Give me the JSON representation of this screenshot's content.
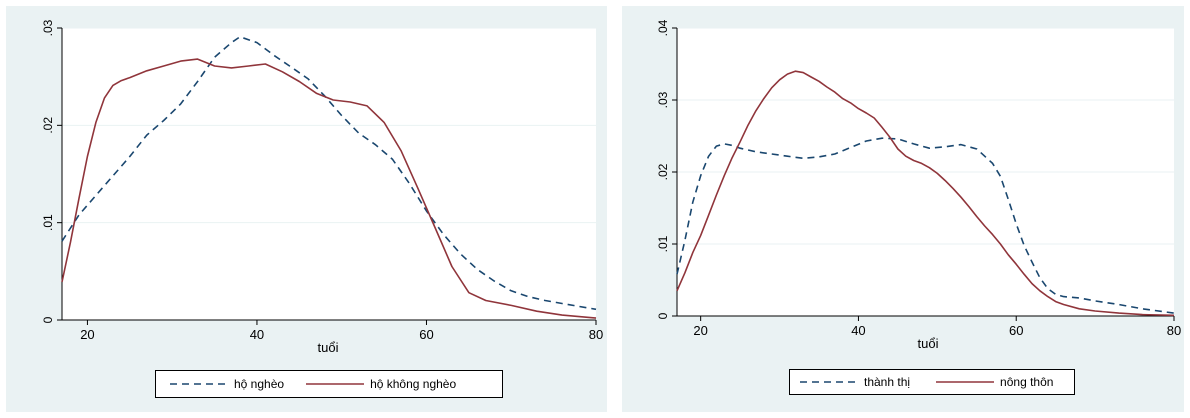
{
  "colors": {
    "series1": "#1a476f",
    "series2": "#90353b",
    "panel_bg": "#eaf2f3",
    "plot_bg": "#ffffff",
    "grid": "#eaf2f3"
  },
  "chart_data": [
    {
      "type": "line",
      "xlabel": "tuổi",
      "ylabel": "",
      "xlim": [
        17,
        80
      ],
      "ylim": [
        0,
        0.03
      ],
      "xticks": [
        "20",
        "40",
        "60",
        "80"
      ],
      "xtick_values": [
        20,
        40,
        60,
        80
      ],
      "yticks": [
        "0",
        ".01",
        ".02",
        ".03"
      ],
      "ytick_values": [
        0,
        0.01,
        0.02,
        0.03
      ],
      "grid": true,
      "legend_position": "bottom",
      "legend": [
        "hộ nghèo",
        "hộ không nghèo"
      ],
      "series": [
        {
          "name": "hộ nghèo",
          "style": "dashed",
          "x": [
            17,
            19,
            21,
            23,
            25,
            27,
            29,
            31,
            33,
            35,
            37,
            38,
            40,
            42,
            44,
            46,
            48,
            50,
            52,
            54,
            56,
            58,
            60,
            62,
            64,
            66,
            68,
            70,
            72,
            74,
            76,
            78,
            80
          ],
          "y": [
            0.0081,
            0.0108,
            0.0128,
            0.0148,
            0.0168,
            0.019,
            0.0205,
            0.0222,
            0.0245,
            0.027,
            0.0285,
            0.0291,
            0.0285,
            0.0272,
            0.026,
            0.0248,
            0.023,
            0.021,
            0.0192,
            0.018,
            0.0165,
            0.014,
            0.0112,
            0.0088,
            0.0068,
            0.0052,
            0.004,
            0.003,
            0.0024,
            0.002,
            0.0017,
            0.0014,
            0.0011
          ]
        },
        {
          "name": "hộ không nghèo",
          "style": "solid",
          "x": [
            17,
            18,
            19,
            20,
            21,
            22,
            23,
            24,
            25,
            27,
            29,
            31,
            33,
            35,
            37,
            39,
            41,
            43,
            45,
            47,
            49,
            51,
            53,
            55,
            57,
            59,
            61,
            63,
            65,
            67,
            70,
            73,
            76,
            80
          ],
          "y": [
            0.0039,
            0.008,
            0.0125,
            0.0168,
            0.0203,
            0.0228,
            0.0241,
            0.0246,
            0.0249,
            0.0256,
            0.0261,
            0.0266,
            0.0268,
            0.0261,
            0.0259,
            0.0261,
            0.0263,
            0.0255,
            0.0245,
            0.0233,
            0.0226,
            0.0224,
            0.022,
            0.0203,
            0.0174,
            0.0135,
            0.0095,
            0.0055,
            0.0028,
            0.002,
            0.0015,
            0.0009,
            0.0005,
            0.0002
          ]
        }
      ]
    },
    {
      "type": "line",
      "xlabel": "tuổi",
      "ylabel": "",
      "xlim": [
        17,
        80
      ],
      "ylim": [
        0,
        0.04
      ],
      "xticks": [
        "20",
        "40",
        "60",
        "80"
      ],
      "xtick_values": [
        20,
        40,
        60,
        80
      ],
      "yticks": [
        "0",
        ".01",
        ".02",
        ".03",
        ".04"
      ],
      "ytick_values": [
        0,
        0.01,
        0.02,
        0.03,
        0.04
      ],
      "grid": true,
      "legend_position": "bottom",
      "legend": [
        "thành thị",
        "nông thôn"
      ],
      "series": [
        {
          "name": "thành thị",
          "style": "dashed",
          "x": [
            17,
            18,
            19,
            20,
            21,
            22,
            23,
            24,
            25,
            27,
            29,
            31,
            33,
            35,
            37,
            39,
            41,
            43,
            45,
            47,
            49,
            51,
            53,
            55,
            56,
            57,
            58,
            59,
            60,
            61,
            62,
            63,
            64,
            65,
            66,
            68,
            70,
            73,
            76,
            80
          ],
          "y": [
            0.0058,
            0.0105,
            0.0158,
            0.0195,
            0.0222,
            0.0236,
            0.0239,
            0.0237,
            0.0233,
            0.0228,
            0.0225,
            0.0222,
            0.0219,
            0.0221,
            0.0225,
            0.0234,
            0.0243,
            0.0247,
            0.0246,
            0.0239,
            0.0233,
            0.0235,
            0.0238,
            0.0232,
            0.0222,
            0.0212,
            0.0194,
            0.0162,
            0.0128,
            0.0098,
            0.0075,
            0.0053,
            0.0038,
            0.003,
            0.0027,
            0.0025,
            0.0021,
            0.0016,
            0.001,
            0.0004
          ]
        },
        {
          "name": "nông thôn",
          "style": "solid",
          "x": [
            17,
            18,
            19,
            20,
            21,
            22,
            23,
            24,
            25,
            26,
            27,
            28,
            29,
            30,
            31,
            32,
            33,
            34,
            35,
            36,
            37,
            38,
            39,
            40,
            41,
            42,
            43,
            44,
            45,
            46,
            47,
            48,
            49,
            50,
            51,
            52,
            53,
            54,
            55,
            56,
            57,
            58,
            59,
            60,
            61,
            62,
            63,
            64,
            65,
            66,
            68,
            70,
            73,
            76,
            80
          ],
          "y": [
            0.0035,
            0.006,
            0.0088,
            0.0112,
            0.014,
            0.0168,
            0.0195,
            0.022,
            0.0242,
            0.0265,
            0.0285,
            0.0302,
            0.0317,
            0.0328,
            0.0336,
            0.034,
            0.0338,
            0.0332,
            0.0326,
            0.0318,
            0.0311,
            0.0302,
            0.0296,
            0.0288,
            0.0282,
            0.0275,
            0.0262,
            0.0248,
            0.0232,
            0.0222,
            0.0216,
            0.0212,
            0.0206,
            0.0198,
            0.0188,
            0.0177,
            0.0165,
            0.0152,
            0.0138,
            0.0125,
            0.0113,
            0.01,
            0.0085,
            0.0072,
            0.0058,
            0.0045,
            0.0035,
            0.0027,
            0.002,
            0.0016,
            0.001,
            0.0007,
            0.0004,
            0.0002,
            0.0001
          ]
        }
      ]
    }
  ]
}
